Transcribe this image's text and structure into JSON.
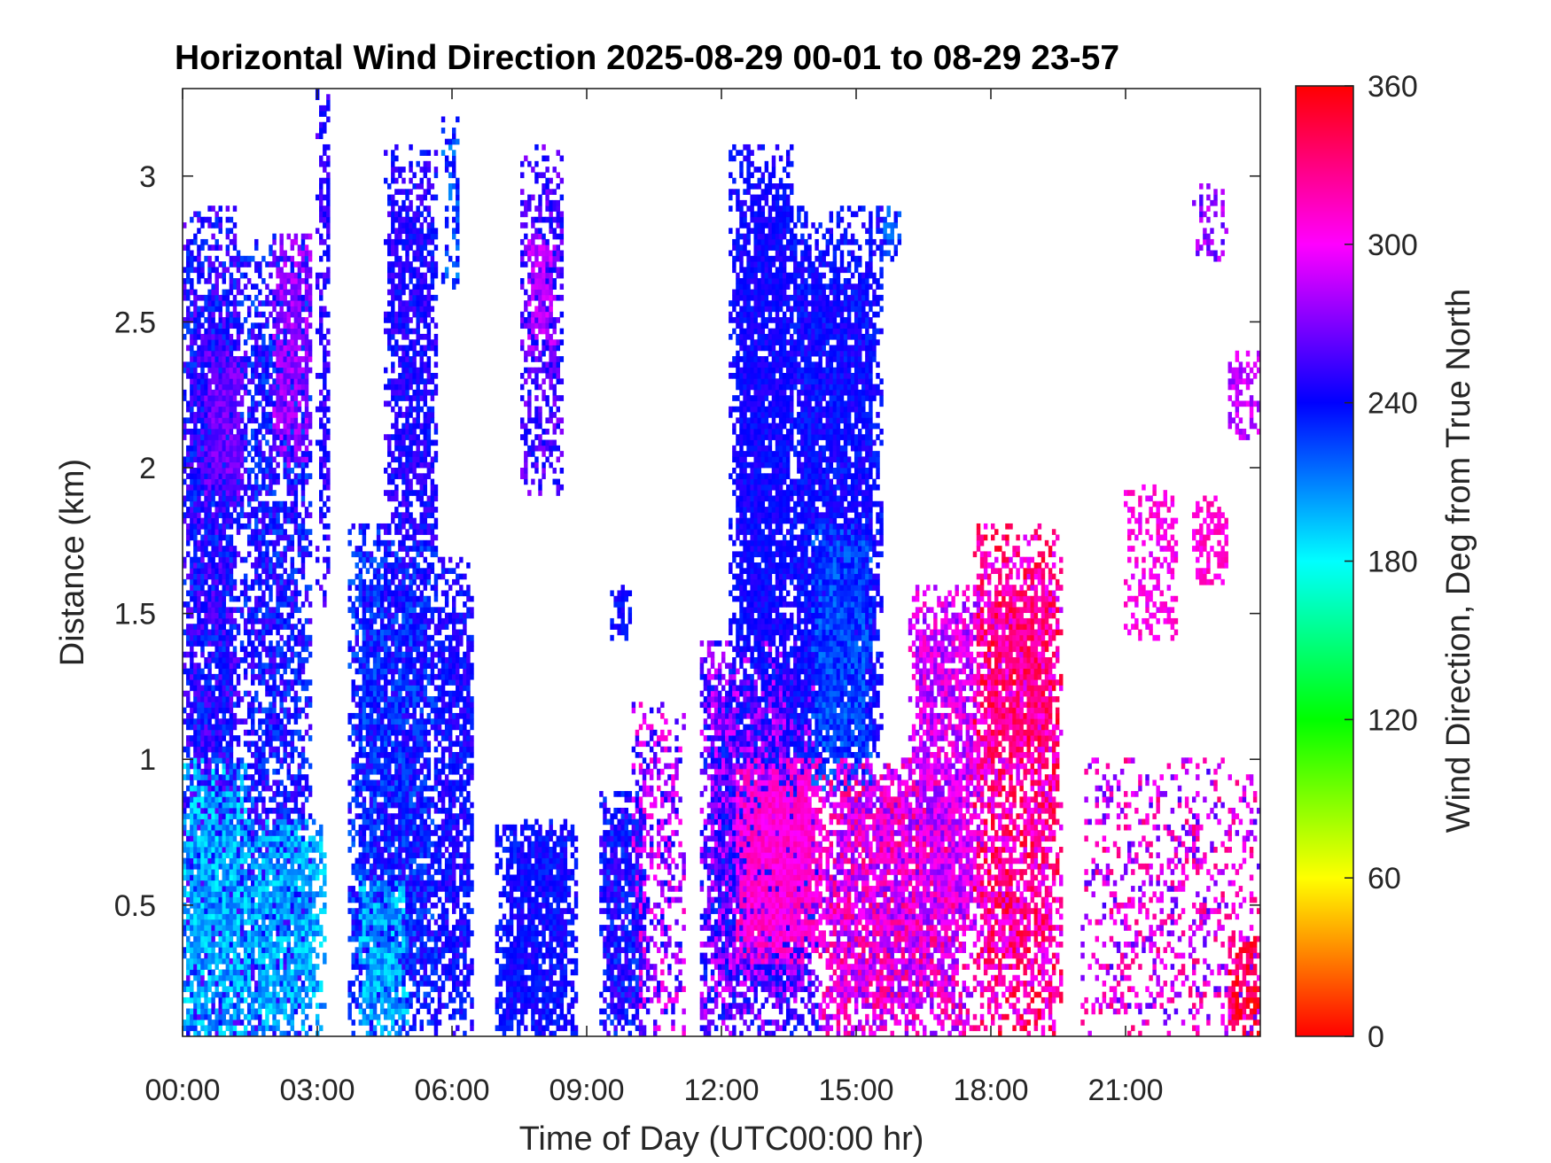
{
  "chart_data": {
    "type": "heatmap",
    "title": "Horizontal Wind Direction 2025-08-29 00-01 to 08-29 23-57",
    "xlabel": "Time of Day (UTC00:00 hr)",
    "ylabel": "Distance (km)",
    "colorbar_label": "Wind Direction, Deg from True North",
    "x_range_hours": [
      0,
      24
    ],
    "y_range_km": [
      0.05,
      3.3
    ],
    "x_ticks": [
      {
        "value": 0,
        "label": "00:00"
      },
      {
        "value": 3,
        "label": "03:00"
      },
      {
        "value": 6,
        "label": "06:00"
      },
      {
        "value": 9,
        "label": "09:00"
      },
      {
        "value": 12,
        "label": "12:00"
      },
      {
        "value": 15,
        "label": "15:00"
      },
      {
        "value": 18,
        "label": "18:00"
      },
      {
        "value": 21,
        "label": "21:00"
      }
    ],
    "y_ticks": [
      {
        "value": 0.5,
        "label": "0.5"
      },
      {
        "value": 1,
        "label": "1"
      },
      {
        "value": 1.5,
        "label": "1.5"
      },
      {
        "value": 2,
        "label": "2"
      },
      {
        "value": 2.5,
        "label": "2.5"
      },
      {
        "value": 3,
        "label": "3"
      }
    ],
    "colorbar_range": [
      0,
      360
    ],
    "colorbar_ticks": [
      {
        "value": 0,
        "label": "0"
      },
      {
        "value": 60,
        "label": "60"
      },
      {
        "value": 120,
        "label": "120"
      },
      {
        "value": 180,
        "label": "180"
      },
      {
        "value": 240,
        "label": "240"
      },
      {
        "value": 300,
        "label": "300"
      },
      {
        "value": 360,
        "label": "360"
      }
    ],
    "colormap": "hsv",
    "grid": false,
    "regions": [
      {
        "t0": 0.0,
        "t1": 1.3,
        "h0": 0.05,
        "h1": 2.9,
        "dir": 245,
        "spread": 22,
        "density": 0.9
      },
      {
        "t0": 0.0,
        "t1": 1.6,
        "h0": 0.05,
        "h1": 1.0,
        "dir": 200,
        "spread": 20,
        "density": 0.85
      },
      {
        "t0": 0.5,
        "t1": 1.4,
        "h0": 1.9,
        "h1": 2.4,
        "dir": 265,
        "spread": 12,
        "density": 0.9
      },
      {
        "t0": 1.3,
        "t1": 2.9,
        "h0": 0.05,
        "h1": 2.8,
        "dir": 240,
        "spread": 22,
        "density": 0.7
      },
      {
        "t0": 2.0,
        "t1": 2.9,
        "h0": 2.0,
        "h1": 2.8,
        "dir": 275,
        "spread": 15,
        "density": 0.8
      },
      {
        "t0": 1.4,
        "t1": 3.2,
        "h0": 0.05,
        "h1": 0.8,
        "dir": 200,
        "spread": 18,
        "density": 0.8
      },
      {
        "t0": 3.0,
        "t1": 3.3,
        "h0": 1.5,
        "h1": 3.3,
        "dir": 250,
        "spread": 15,
        "density": 0.6
      },
      {
        "t0": 3.7,
        "t1": 5.7,
        "h0": 0.05,
        "h1": 1.8,
        "dir": 235,
        "spread": 20,
        "density": 0.9
      },
      {
        "t0": 4.5,
        "t1": 5.7,
        "h0": 1.6,
        "h1": 3.1,
        "dir": 245,
        "spread": 15,
        "density": 0.75
      },
      {
        "t0": 5.6,
        "t1": 6.5,
        "h0": 0.05,
        "h1": 1.7,
        "dir": 242,
        "spread": 15,
        "density": 0.8
      },
      {
        "t0": 3.9,
        "t1": 5.0,
        "h0": 0.05,
        "h1": 0.6,
        "dir": 200,
        "spread": 18,
        "density": 0.8
      },
      {
        "t0": 5.8,
        "t1": 6.2,
        "h0": 2.6,
        "h1": 3.2,
        "dir": 225,
        "spread": 20,
        "density": 0.5
      },
      {
        "t0": 7.0,
        "t1": 8.8,
        "h0": 0.05,
        "h1": 0.8,
        "dir": 240,
        "spread": 12,
        "density": 0.9
      },
      {
        "t0": 7.5,
        "t1": 8.5,
        "h0": 1.9,
        "h1": 3.1,
        "dir": 255,
        "spread": 20,
        "density": 0.6
      },
      {
        "t0": 7.7,
        "t1": 8.3,
        "h0": 2.4,
        "h1": 2.8,
        "dir": 285,
        "spread": 12,
        "density": 0.6
      },
      {
        "t0": 9.3,
        "t1": 10.3,
        "h0": 0.05,
        "h1": 0.9,
        "dir": 242,
        "spread": 20,
        "density": 0.85
      },
      {
        "t0": 9.5,
        "t1": 10.0,
        "h0": 1.4,
        "h1": 1.6,
        "dir": 240,
        "spread": 10,
        "density": 0.7
      },
      {
        "t0": 10.0,
        "t1": 11.2,
        "h0": 0.05,
        "h1": 1.2,
        "dir": 275,
        "spread": 40,
        "density": 0.45
      },
      {
        "t0": 11.5,
        "t1": 14.2,
        "h0": 0.05,
        "h1": 1.4,
        "dir": 262,
        "spread": 35,
        "density": 0.95
      },
      {
        "t0": 12.3,
        "t1": 14.3,
        "h0": 0.3,
        "h1": 1.0,
        "dir": 310,
        "spread": 12,
        "density": 0.9
      },
      {
        "t0": 12.2,
        "t1": 13.6,
        "h0": 1.2,
        "h1": 3.1,
        "dir": 242,
        "spread": 10,
        "density": 0.9
      },
      {
        "t0": 13.4,
        "t1": 15.6,
        "h0": 1.0,
        "h1": 2.9,
        "dir": 240,
        "spread": 12,
        "density": 0.9
      },
      {
        "t0": 14.0,
        "t1": 15.4,
        "h0": 0.9,
        "h1": 1.8,
        "dir": 225,
        "spread": 15,
        "density": 0.9
      },
      {
        "t0": 14.2,
        "t1": 17.6,
        "h0": 0.05,
        "h1": 1.0,
        "dir": 300,
        "spread": 35,
        "density": 0.85
      },
      {
        "t0": 15.5,
        "t1": 16.0,
        "h0": 2.7,
        "h1": 2.9,
        "dir": 230,
        "spread": 25,
        "density": 0.6
      },
      {
        "t0": 16.2,
        "t1": 17.8,
        "h0": 0.4,
        "h1": 1.6,
        "dir": 292,
        "spread": 25,
        "density": 0.8
      },
      {
        "t0": 17.6,
        "t1": 19.6,
        "h0": 0.05,
        "h1": 1.8,
        "dir": 320,
        "spread": 35,
        "density": 0.75
      },
      {
        "t0": 18.0,
        "t1": 19.4,
        "h0": 1.0,
        "h1": 1.6,
        "dir": 330,
        "spread": 20,
        "density": 0.7
      },
      {
        "t0": 20.0,
        "t1": 24.0,
        "h0": 0.05,
        "h1": 1.0,
        "dir": 295,
        "spread": 40,
        "density": 0.32
      },
      {
        "t0": 21.0,
        "t1": 22.2,
        "h0": 1.4,
        "h1": 1.95,
        "dir": 305,
        "spread": 15,
        "density": 0.45
      },
      {
        "t0": 22.5,
        "t1": 23.3,
        "h0": 1.6,
        "h1": 1.9,
        "dir": 310,
        "spread": 12,
        "density": 0.65
      },
      {
        "t0": 23.3,
        "t1": 24.0,
        "h0": 2.1,
        "h1": 2.4,
        "dir": 285,
        "spread": 15,
        "density": 0.6
      },
      {
        "t0": 22.5,
        "t1": 23.3,
        "h0": 2.7,
        "h1": 3.0,
        "dir": 275,
        "spread": 20,
        "density": 0.35
      },
      {
        "t0": 23.3,
        "t1": 24.0,
        "h0": 0.05,
        "h1": 0.4,
        "dir": 345,
        "spread": 20,
        "density": 0.6
      }
    ]
  }
}
